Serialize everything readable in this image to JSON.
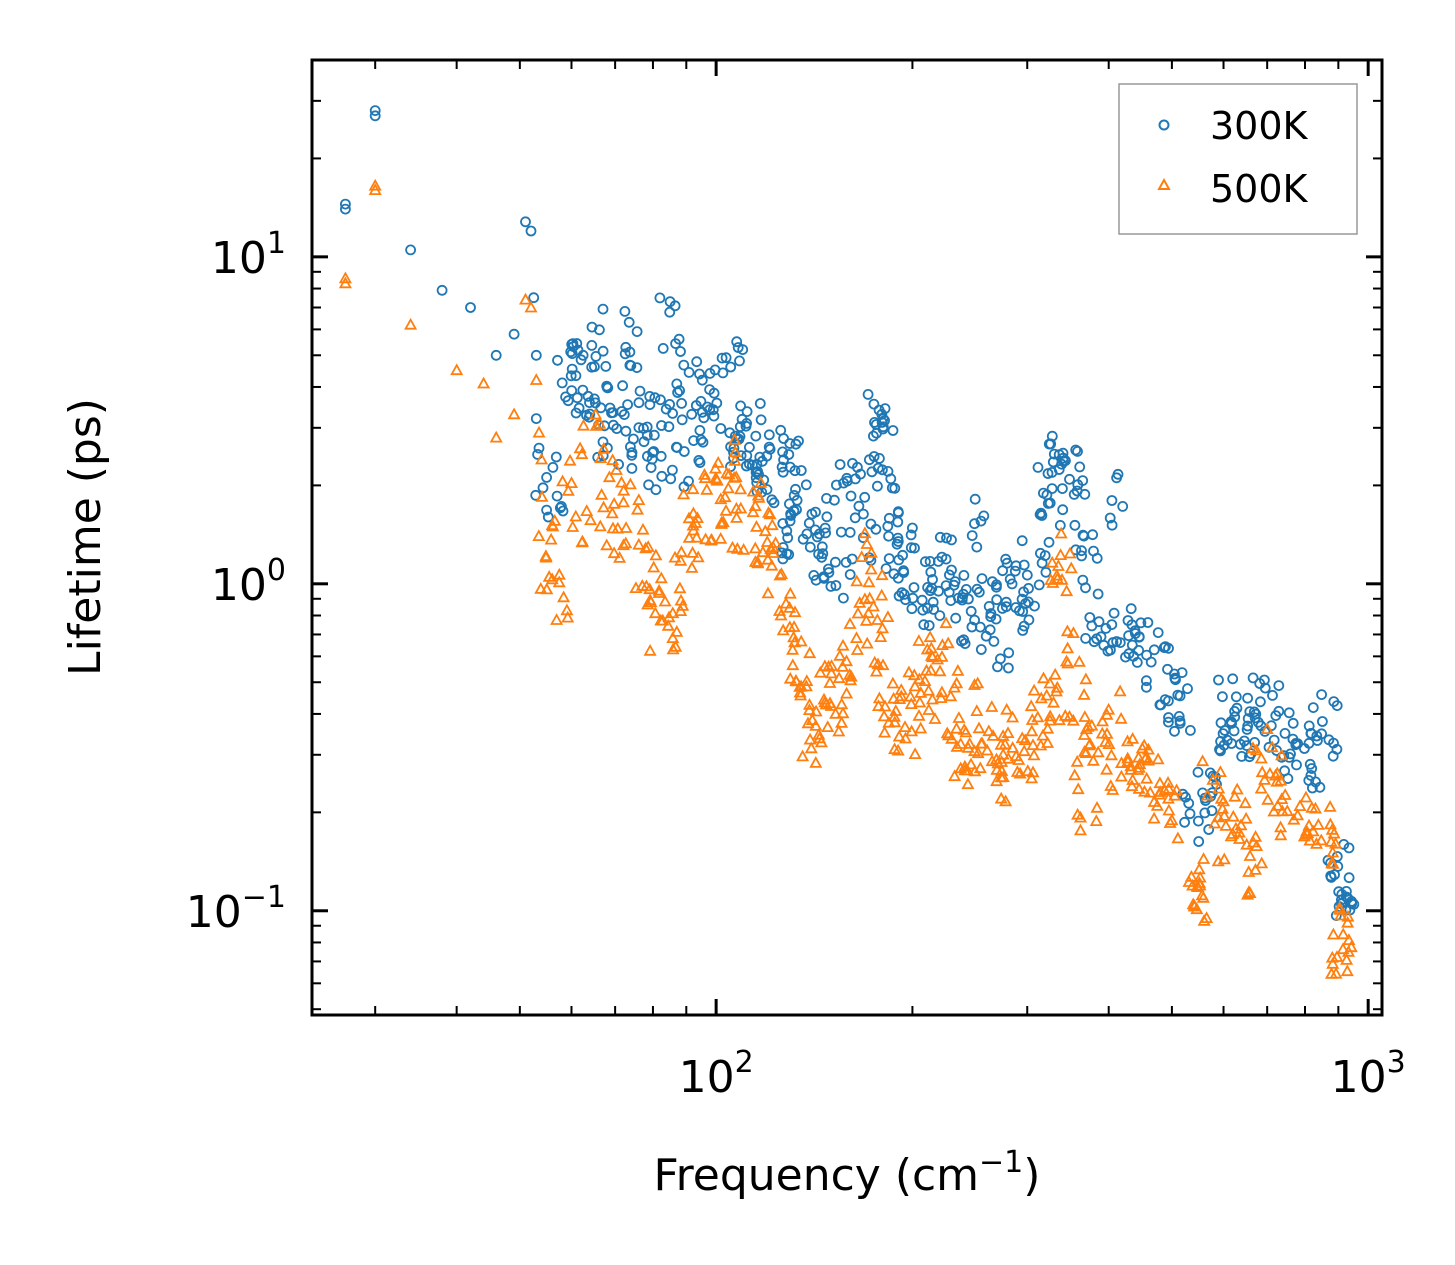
{
  "chart_data": {
    "type": "scatter",
    "title": "",
    "xlabel": "Frequency (cm",
    "xlabel_sup": "−1",
    "xlabel_end": ")",
    "ylabel": "Lifetime (ps)",
    "xscale": "log",
    "yscale": "log",
    "xlim": [
      24,
      1050
    ],
    "ylim": [
      0.048,
      40
    ],
    "x_ticks": [
      {
        "value": 100,
        "base": "10",
        "exp": "2"
      },
      {
        "value": 1000,
        "base": "10",
        "exp": "3"
      }
    ],
    "y_ticks": [
      {
        "value": 0.1,
        "base": "10",
        "exp": "−1"
      },
      {
        "value": 1,
        "base": "10",
        "exp": "0"
      },
      {
        "value": 10,
        "base": "10",
        "exp": "1"
      }
    ],
    "legend_position": "top-right",
    "series": [
      {
        "name": "300K",
        "marker": "circle",
        "color": "#1f77b4",
        "points": [
          [
            27,
            14.5
          ],
          [
            27,
            14.0
          ],
          [
            30,
            28
          ],
          [
            30,
            27
          ],
          [
            34,
            10.5
          ],
          [
            38,
            7.9
          ],
          [
            42,
            7.0
          ],
          [
            46,
            5.0
          ],
          [
            49,
            5.8
          ],
          [
            51,
            12.8
          ],
          [
            52,
            12.0
          ],
          [
            52.5,
            7.5
          ],
          [
            53,
            5.0
          ],
          [
            53,
            3.2
          ],
          [
            53.5,
            2.6
          ],
          [
            55,
            2.2
          ],
          [
            56,
            1.9
          ],
          [
            58,
            4.6
          ],
          [
            60,
            4.2
          ],
          [
            62,
            5.0
          ],
          [
            63,
            3.8
          ],
          [
            65,
            5.8
          ],
          [
            65,
            3.4
          ],
          [
            67,
            4.7
          ],
          [
            68,
            2.8
          ],
          [
            70,
            3.1
          ],
          [
            72,
            2.5
          ],
          [
            74,
            4.3
          ],
          [
            75,
            5.8
          ],
          [
            76,
            3.2
          ],
          [
            78,
            2.7
          ],
          [
            80,
            2.2
          ],
          [
            82,
            3.4
          ],
          [
            85,
            6.3
          ],
          [
            87,
            3.6
          ],
          [
            88,
            2.3
          ],
          [
            90,
            4.6
          ],
          [
            93,
            2.8
          ],
          [
            95,
            3.9
          ],
          [
            98,
            3.3
          ],
          [
            100,
            4.1
          ],
          [
            103,
            3.0
          ],
          [
            106,
            4.7
          ],
          [
            108,
            2.6
          ],
          [
            110,
            2.9
          ],
          [
            113,
            3.1
          ],
          [
            116,
            2.5
          ],
          [
            118,
            2.1
          ],
          [
            120,
            2.0
          ],
          [
            122,
            2.7
          ],
          [
            125,
            2.4
          ],
          [
            128,
            1.7
          ],
          [
            131,
            1.3
          ],
          [
            134,
            1.6
          ],
          [
            137,
            2.3
          ],
          [
            140,
            1.2
          ],
          [
            144,
            1.4
          ],
          [
            147,
            1.1
          ],
          [
            150,
            1.6
          ],
          [
            155,
            1.0
          ],
          [
            158,
            2.0
          ],
          [
            163,
            1.8
          ],
          [
            167,
            1.3
          ],
          [
            170,
            2.1
          ],
          [
            174,
            2.6
          ],
          [
            177,
            3.4
          ],
          [
            180,
            2.9
          ],
          [
            183,
            1.5
          ],
          [
            186,
            1.2
          ],
          [
            190,
            1.9
          ],
          [
            195,
            1.1
          ],
          [
            200,
            0.95
          ],
          [
            205,
            1.3
          ],
          [
            210,
            1.0
          ],
          [
            216,
            0.85
          ],
          [
            222,
            1.1
          ],
          [
            228,
            1.2
          ],
          [
            234,
            0.9
          ],
          [
            240,
            0.8
          ],
          [
            247,
            0.7
          ],
          [
            253,
            1.55
          ],
          [
            259,
            0.95
          ],
          [
            266,
            0.75
          ],
          [
            272,
            0.65
          ],
          [
            280,
            1.0
          ],
          [
            288,
            1.2
          ],
          [
            296,
            0.9
          ],
          [
            303,
            0.8
          ],
          [
            311,
            1.1
          ],
          [
            320,
            1.9
          ],
          [
            327,
            1.6
          ],
          [
            333,
            2.6
          ],
          [
            340,
            2.0
          ],
          [
            348,
            2.4
          ],
          [
            356,
            2.1
          ],
          [
            364,
            1.5
          ],
          [
            372,
            1.1
          ],
          [
            380,
            0.8
          ],
          [
            392,
            0.65
          ],
          [
            405,
            1.8
          ],
          [
            418,
            0.7
          ],
          [
            432,
            0.6
          ],
          [
            445,
            0.65
          ],
          [
            460,
            0.6
          ],
          [
            475,
            0.55
          ],
          [
            490,
            0.5
          ],
          [
            505,
            0.45
          ],
          [
            515,
            0.4
          ],
          [
            540,
            0.2
          ],
          [
            555,
            0.19
          ],
          [
            570,
            0.23
          ],
          [
            590,
            0.29
          ],
          [
            600,
            0.33
          ],
          [
            610,
            0.45
          ],
          [
            630,
            0.38
          ],
          [
            650,
            0.35
          ],
          [
            665,
            0.33
          ],
          [
            690,
            0.43
          ],
          [
            710,
            0.41
          ],
          [
            730,
            0.37
          ],
          [
            750,
            0.3
          ],
          [
            770,
            0.33
          ],
          [
            800,
            0.26
          ],
          [
            840,
            0.35
          ],
          [
            860,
            0.28
          ],
          [
            880,
            0.4
          ],
          [
            900,
            0.15
          ],
          [
            910,
            0.12
          ],
          [
            920,
            0.11
          ],
          [
            930,
            0.1
          ]
        ]
      },
      {
        "name": "500K",
        "marker": "triangle",
        "color": "#ff7f0e",
        "points": [
          [
            27,
            8.6
          ],
          [
            27,
            8.3
          ],
          [
            30,
            16.5
          ],
          [
            30,
            16
          ],
          [
            34,
            6.2
          ],
          [
            40,
            4.5
          ],
          [
            44,
            4.1
          ],
          [
            46,
            2.8
          ],
          [
            49,
            3.3
          ],
          [
            51,
            7.4
          ],
          [
            52,
            7.0
          ],
          [
            53,
            4.2
          ],
          [
            53.5,
            2.9
          ],
          [
            54,
            2.4
          ],
          [
            55,
            1.6
          ],
          [
            56,
            1.1
          ],
          [
            57,
            0.9
          ],
          [
            60,
            2.2
          ],
          [
            62,
            1.6
          ],
          [
            65,
            2.9
          ],
          [
            67,
            1.8
          ],
          [
            70,
            1.4
          ],
          [
            72,
            2.0
          ],
          [
            75,
            1.5
          ],
          [
            78,
            1.1
          ],
          [
            80,
            0.85
          ],
          [
            82,
            0.75
          ],
          [
            85,
            0.9
          ],
          [
            88,
            0.72
          ],
          [
            90,
            1.2
          ],
          [
            92,
            1.7
          ],
          [
            95,
            1.4
          ],
          [
            98,
            2.1
          ],
          [
            100,
            1.6
          ],
          [
            103,
            2.4
          ],
          [
            106,
            1.8
          ],
          [
            110,
            1.5
          ],
          [
            113,
            1.9
          ],
          [
            116,
            1.3
          ],
          [
            120,
            1.6
          ],
          [
            122,
            1.2
          ],
          [
            125,
            0.95
          ],
          [
            128,
            0.75
          ],
          [
            131,
            0.6
          ],
          [
            134,
            0.55
          ],
          [
            137,
            0.45
          ],
          [
            140,
            0.32
          ],
          [
            144,
            0.37
          ],
          [
            147,
            0.5
          ],
          [
            150,
            0.36
          ],
          [
            155,
            0.45
          ],
          [
            160,
            0.55
          ],
          [
            166,
            0.75
          ],
          [
            170,
            0.95
          ],
          [
            174,
            1.2
          ],
          [
            177,
            0.8
          ],
          [
            180,
            0.5
          ],
          [
            185,
            0.38
          ],
          [
            190,
            0.35
          ],
          [
            195,
            0.45
          ],
          [
            200,
            0.35
          ],
          [
            205,
            0.6
          ],
          [
            210,
            0.5
          ],
          [
            216,
            0.45
          ],
          [
            222,
            0.7
          ],
          [
            228,
            0.5
          ],
          [
            234,
            0.33
          ],
          [
            240,
            0.28
          ],
          [
            247,
            0.32
          ],
          [
            253,
            0.27
          ],
          [
            259,
            0.42
          ],
          [
            266,
            0.3
          ],
          [
            272,
            0.25
          ],
          [
            280,
            0.28
          ],
          [
            288,
            0.36
          ],
          [
            296,
            0.31
          ],
          [
            303,
            0.3
          ],
          [
            311,
            0.4
          ],
          [
            320,
            0.38
          ],
          [
            327,
            0.45
          ],
          [
            333,
            1.0
          ],
          [
            340,
            1.2
          ],
          [
            348,
            0.62
          ],
          [
            356,
            0.45
          ],
          [
            364,
            0.31
          ],
          [
            372,
            0.2
          ],
          [
            380,
            0.35
          ],
          [
            392,
            0.28
          ],
          [
            405,
            0.4
          ],
          [
            418,
            0.28
          ],
          [
            432,
            0.3
          ],
          [
            445,
            0.25
          ],
          [
            460,
            0.28
          ],
          [
            475,
            0.22
          ],
          [
            490,
            0.25
          ],
          [
            505,
            0.2
          ],
          [
            540,
            0.12
          ],
          [
            550,
            0.105
          ],
          [
            560,
            0.11
          ],
          [
            580,
            0.24
          ],
          [
            600,
            0.2
          ],
          [
            610,
            0.16
          ],
          [
            630,
            0.2
          ],
          [
            650,
            0.17
          ],
          [
            665,
            0.13
          ],
          [
            690,
            0.3
          ],
          [
            710,
            0.26
          ],
          [
            730,
            0.22
          ],
          [
            760,
            0.19
          ],
          [
            790,
            0.2
          ],
          [
            820,
            0.18
          ],
          [
            850,
            0.19
          ],
          [
            880,
            0.15
          ],
          [
            900,
            0.09
          ],
          [
            905,
            0.075
          ],
          [
            910,
            0.065
          ]
        ]
      }
    ]
  }
}
